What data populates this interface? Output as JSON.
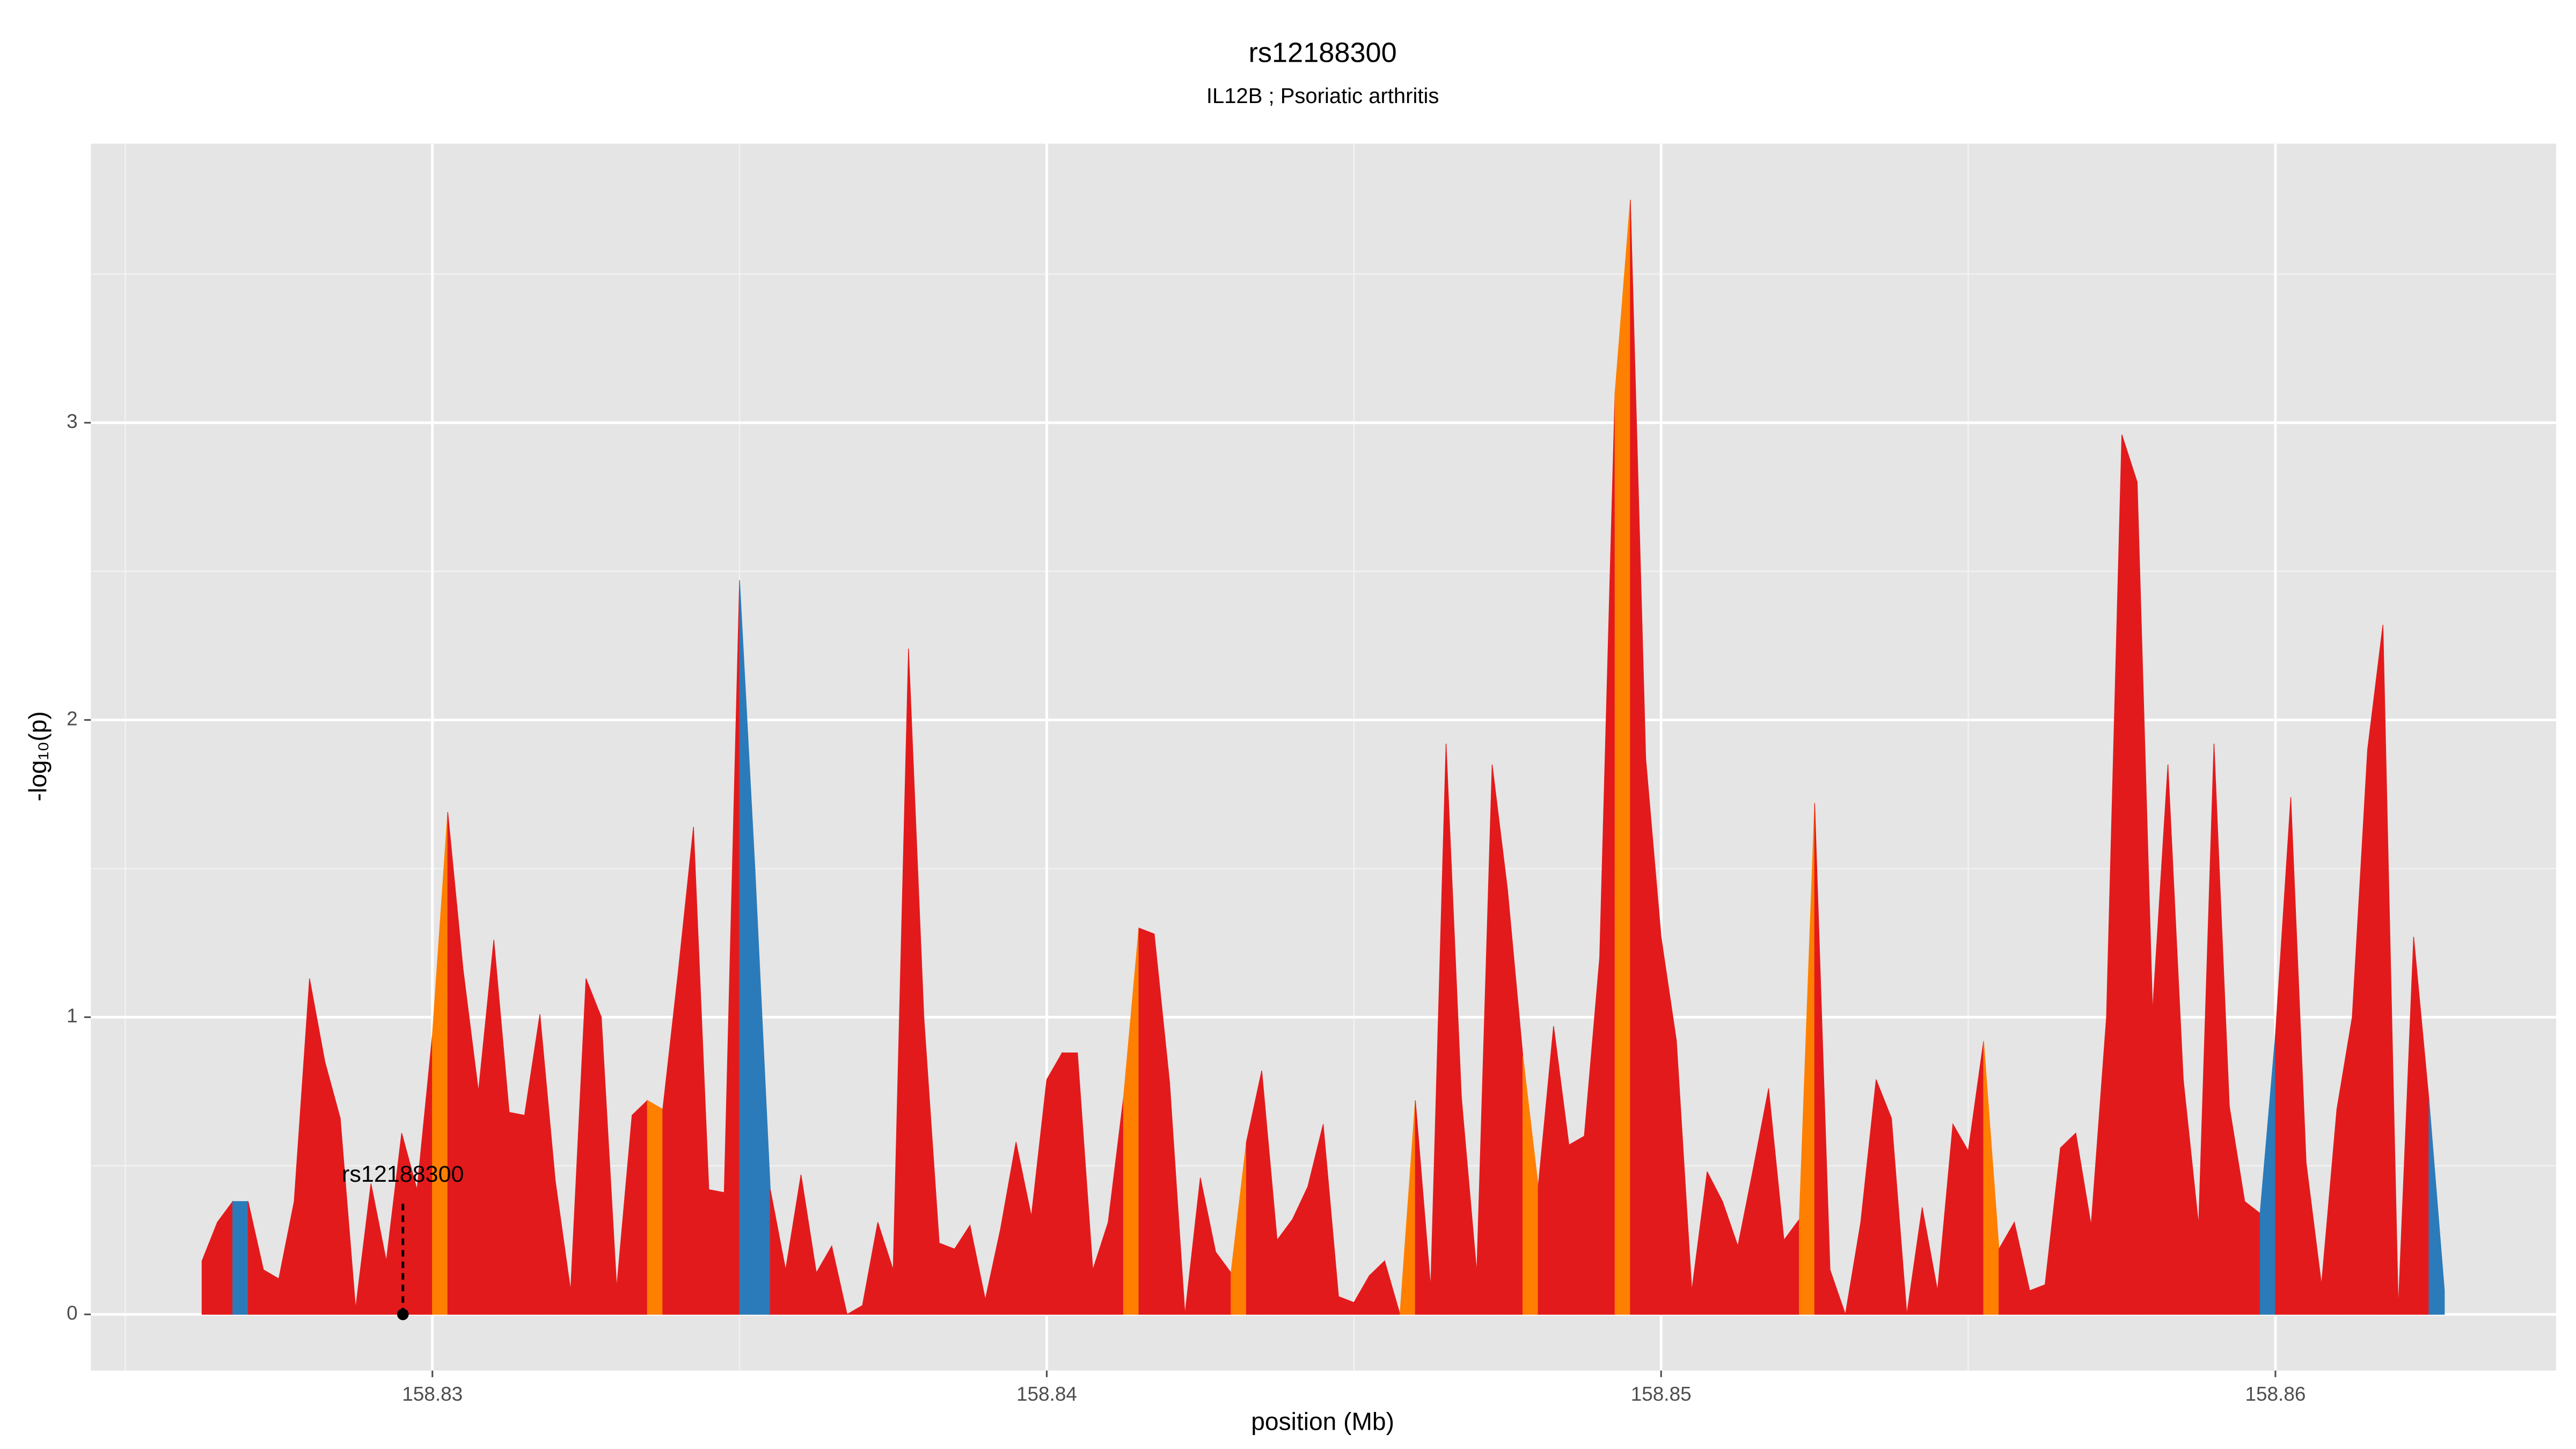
{
  "chart_data": {
    "type": "area",
    "title": "rs12188300",
    "subtitle": "IL12B ; Psoriatic arthritis",
    "x_label": "position (Mb)",
    "y_label": "-log₁₀(p)",
    "x": [
      158.82625,
      158.8265,
      158.82675,
      158.827,
      158.82725,
      158.8275,
      158.82775,
      158.828,
      158.82825,
      158.8285,
      158.82875,
      158.829,
      158.82925,
      158.8295,
      158.82975,
      158.83,
      158.83025,
      158.8305,
      158.83075,
      158.831,
      158.83125,
      158.8315,
      158.83175,
      158.832,
      158.83225,
      158.8325,
      158.83275,
      158.833,
      158.83325,
      158.8335,
      158.83375,
      158.834,
      158.83425,
      158.8345,
      158.83475,
      158.835,
      158.83525,
      158.8355,
      158.83575,
      158.836,
      158.83625,
      158.8365,
      158.83675,
      158.837,
      158.83725,
      158.8375,
      158.83775,
      158.838,
      158.83825,
      158.8385,
      158.83875,
      158.839,
      158.83925,
      158.8395,
      158.83975,
      158.84,
      158.84025,
      158.8405,
      158.84075,
      158.841,
      158.84125,
      158.8415,
      158.84175,
      158.842,
      158.84225,
      158.8425,
      158.84275,
      158.843,
      158.84325,
      158.8435,
      158.84375,
      158.844,
      158.84425,
      158.8445,
      158.84475,
      158.845,
      158.84525,
      158.8455,
      158.84575,
      158.846,
      158.84625,
      158.8465,
      158.84675,
      158.847,
      158.84725,
      158.8475,
      158.84775,
      158.848,
      158.84825,
      158.8485,
      158.84875,
      158.849,
      158.84925,
      158.8495,
      158.84975,
      158.85,
      158.85025,
      158.8505,
      158.85075,
      158.851,
      158.85125,
      158.8515,
      158.85175,
      158.852,
      158.85225,
      158.8525,
      158.85275,
      158.853,
      158.85325,
      158.8535,
      158.85375,
      158.854,
      158.85425,
      158.8545,
      158.85475,
      158.855,
      158.85525,
      158.8555,
      158.85575,
      158.856,
      158.85625,
      158.8565,
      158.85675,
      158.857,
      158.85725,
      158.8575,
      158.85775,
      158.858,
      158.85825,
      158.8585,
      158.85875,
      158.859,
      158.85925,
      158.8595,
      158.85975,
      158.86,
      158.86025,
      158.8605,
      158.86075,
      158.861,
      158.86125,
      158.8615,
      158.86175,
      158.862,
      158.86225,
      158.8625,
      158.86275
    ],
    "values": [
      0.18,
      0.31,
      0.38,
      0.38,
      0.15,
      0.12,
      0.38,
      1.13,
      0.85,
      0.66,
      0.02,
      0.44,
      0.18,
      0.61,
      0.42,
      0.94,
      1.69,
      1.16,
      0.75,
      1.26,
      0.68,
      0.67,
      1.01,
      0.45,
      0.08,
      1.13,
      1.0,
      0.09,
      0.67,
      0.72,
      0.69,
      1.15,
      1.64,
      0.42,
      0.41,
      2.47,
      1.5,
      0.42,
      0.15,
      0.47,
      0.14,
      0.23,
      0.0,
      0.03,
      0.31,
      0.15,
      2.24,
      1.0,
      0.24,
      0.22,
      0.3,
      0.05,
      0.29,
      0.58,
      0.33,
      0.79,
      0.88,
      0.88,
      0.15,
      0.31,
      0.73,
      1.3,
      1.28,
      0.78,
      0.0,
      0.46,
      0.21,
      0.14,
      0.58,
      0.82,
      0.25,
      0.32,
      0.43,
      0.64,
      0.06,
      0.04,
      0.13,
      0.18,
      0.0,
      0.72,
      0.09,
      1.92,
      0.73,
      0.14,
      1.85,
      1.43,
      0.87,
      0.43,
      0.97,
      0.57,
      0.6,
      1.2,
      3.1,
      3.75,
      1.87,
      1.27,
      0.92,
      0.08,
      0.48,
      0.38,
      0.23,
      0.49,
      0.76,
      0.25,
      0.32,
      1.72,
      0.15,
      0.0,
      0.31,
      0.79,
      0.66,
      0.0,
      0.36,
      0.08,
      0.64,
      0.55,
      0.92,
      0.22,
      0.31,
      0.08,
      0.1,
      0.56,
      0.61,
      0.3,
      1.0,
      2.96,
      2.8,
      1.02,
      1.85,
      0.79,
      0.3,
      1.92,
      0.7,
      0.38,
      0.34,
      0.94,
      1.74,
      0.51,
      0.1,
      0.69,
      1.0,
      1.9,
      2.32,
      0.02,
      1.27,
      0.72,
      0.08
    ],
    "segment_colors": [
      "#e31a1c",
      "#e31a1c",
      "#2b7bba",
      "#e31a1c",
      "#e31a1c",
      "#e31a1c",
      "#e31a1c",
      "#e31a1c",
      "#e31a1c",
      "#e31a1c",
      "#e31a1c",
      "#e31a1c",
      "#e31a1c",
      "#e31a1c",
      "#e31a1c",
      "#ff7f00",
      "#e31a1c",
      "#e31a1c",
      "#e31a1c",
      "#e31a1c",
      "#e31a1c",
      "#e31a1c",
      "#e31a1c",
      "#e31a1c",
      "#e31a1c",
      "#e31a1c",
      "#e31a1c",
      "#e31a1c",
      "#e31a1c",
      "#ff7f00",
      "#e31a1c",
      "#e31a1c",
      "#e31a1c",
      "#e31a1c",
      "#e31a1c",
      "#2b7bba",
      "#2b7bba",
      "#e31a1c",
      "#e31a1c",
      "#e31a1c",
      "#e31a1c",
      "#e31a1c",
      "#e31a1c",
      "#e31a1c",
      "#e31a1c",
      "#e31a1c",
      "#e31a1c",
      "#e31a1c",
      "#e31a1c",
      "#e31a1c",
      "#e31a1c",
      "#e31a1c",
      "#e31a1c",
      "#e31a1c",
      "#e31a1c",
      "#e31a1c",
      "#e31a1c",
      "#e31a1c",
      "#e31a1c",
      "#e31a1c",
      "#ff7f00",
      "#e31a1c",
      "#e31a1c",
      "#e31a1c",
      "#e31a1c",
      "#e31a1c",
      "#e31a1c",
      "#ff7f00",
      "#e31a1c",
      "#e31a1c",
      "#e31a1c",
      "#e31a1c",
      "#e31a1c",
      "#e31a1c",
      "#e31a1c",
      "#e31a1c",
      "#e31a1c",
      "#e31a1c",
      "#ff7f00",
      "#e31a1c",
      "#e31a1c",
      "#e31a1c",
      "#e31a1c",
      "#e31a1c",
      "#e31a1c",
      "#e31a1c",
      "#ff7f00",
      "#e31a1c",
      "#e31a1c",
      "#e31a1c",
      "#e31a1c",
      "#e31a1c",
      "#ff7f00",
      "#e31a1c",
      "#e31a1c",
      "#e31a1c",
      "#e31a1c",
      "#e31a1c",
      "#e31a1c",
      "#e31a1c",
      "#e31a1c",
      "#e31a1c",
      "#e31a1c",
      "#e31a1c",
      "#ff7f00",
      "#e31a1c",
      "#e31a1c",
      "#e31a1c",
      "#e31a1c",
      "#e31a1c",
      "#e31a1c",
      "#e31a1c",
      "#e31a1c",
      "#e31a1c",
      "#e31a1c",
      "#e31a1c",
      "#ff7f00",
      "#e31a1c",
      "#e31a1c",
      "#e31a1c",
      "#e31a1c",
      "#e31a1c",
      "#e31a1c",
      "#e31a1c",
      "#e31a1c",
      "#e31a1c",
      "#e31a1c",
      "#e31a1c",
      "#e31a1c",
      "#e31a1c",
      "#e31a1c",
      "#e31a1c",
      "#e31a1c",
      "#e31a1c",
      "#2b7bba",
      "#e31a1c",
      "#e31a1c",
      "#e31a1c",
      "#e31a1c",
      "#e31a1c",
      "#e31a1c",
      "#e31a1c",
      "#e31a1c",
      "#e31a1c",
      "#e31a1c",
      "#2b7bba"
    ],
    "annotation": {
      "label": "rs12188300",
      "x": 158.82952,
      "y": 0
    },
    "xlim": [
      158.82444,
      158.86457
    ],
    "ylim": [
      -0.189,
      3.939
    ],
    "xticks": [
      158.83,
      158.84,
      158.85,
      158.86
    ],
    "yticks": [
      0,
      1,
      2,
      3
    ],
    "x_minor": [
      158.825,
      158.835,
      158.845,
      158.855
    ],
    "y_minor": [
      0.5,
      1.5,
      2.5,
      3.5
    ],
    "grid": true
  }
}
